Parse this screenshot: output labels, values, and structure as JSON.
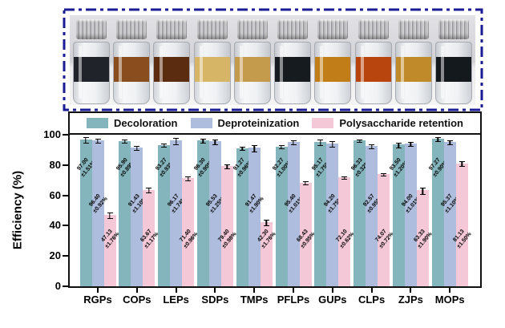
{
  "colors": {
    "decoloration": "#84B4BC",
    "deproteinization": "#AEBDDD",
    "polysaccharide_retention": "#F4C8D6",
    "photo_dash_border": "#1B1B96",
    "axis": "#101010"
  },
  "photo": {
    "vial_liquid_colors": [
      "#20242A",
      "#8A4E1E",
      "#5C2C10",
      "#D6B567",
      "#C49A4D",
      "#161B20",
      "#C07D18",
      "#B8440E",
      "#C08A2A",
      "#14191E"
    ]
  },
  "chart_data": {
    "type": "bar",
    "title": "",
    "ylabel": "Efficiency (%)",
    "xlabel": "",
    "ylim": [
      0,
      100
    ],
    "yticks": [
      0,
      20,
      40,
      60,
      80,
      100
    ],
    "grid": false,
    "legend_position": "top",
    "categories": [
      "RGPs",
      "COPs",
      "LEPs",
      "SDPs",
      "TMPs",
      "PFLPs",
      "GUPs",
      "CLPs",
      "ZJPs",
      "MOPs"
    ],
    "series": [
      {
        "name": "Decoloration",
        "color": "#84B4BC",
        "values": [
          97.0,
          95.9,
          93.27,
          96.3,
          91.27,
          92.27,
          95.17,
          96.33,
          93.5,
          97.27
        ],
        "errors": [
          1.51,
          0.89,
          0.93,
          0.9,
          0.96,
          1.0,
          1.75,
          0.32,
          1.2,
          0.9
        ]
      },
      {
        "name": "Deproteinization",
        "color": "#AEBDDD",
        "values": [
          96.4,
          91.43,
          96.17,
          95.53,
          91.47,
          95.4,
          94.2,
          92.57,
          94.0,
          95.37
        ],
        "errors": [
          0.92,
          1.1,
          1.74,
          1.25,
          1.9,
          1.01,
          1.75,
          0.95,
          1.01,
          1.1
        ]
      },
      {
        "name": "Polysaccharide retention",
        "color": "#F4C8D6",
        "values": [
          47.13,
          63.67,
          71.4,
          79.4,
          42.3,
          68.43,
          72.1,
          74.07,
          63.33,
          81.13
        ],
        "errors": [
          1.76,
          1.17,
          0.96,
          0.98,
          1.76,
          0.95,
          0.62,
          0.72,
          1.9,
          1.5
        ]
      }
    ],
    "bar_value_label_format": "value ± error %"
  }
}
